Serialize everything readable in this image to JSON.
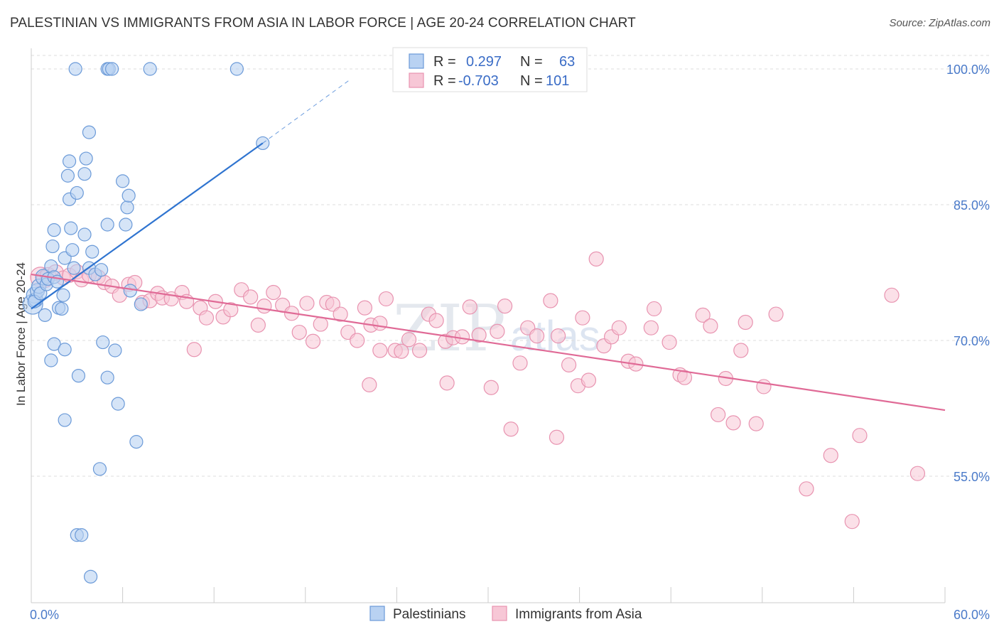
{
  "title": "PALESTINIAN VS IMMIGRANTS FROM ASIA IN LABOR FORCE | AGE 20-24 CORRELATION CHART",
  "source": "Source: ZipAtlas.com",
  "watermark": {
    "zip": "ZIP",
    "atlas": "atlas"
  },
  "colors": {
    "blue_fill": "#b9d2f2",
    "blue_stroke": "#6b9ad8",
    "blue_line": "#2f74d0",
    "pink_fill": "#f7c7d6",
    "pink_stroke": "#e893b0",
    "pink_line": "#e06a96",
    "tick_text": "#4a7ac9",
    "grid": "#dddddd"
  },
  "legend": {
    "rows": [
      {
        "r_label": "R =",
        "r_value": "0.297",
        "n_label": "N =",
        "n_value": "63"
      },
      {
        "r_label": "R =",
        "r_value": "-0.703",
        "n_label": "N =",
        "n_value": "101"
      }
    ]
  },
  "bottom_legend": [
    "Palestinians",
    "Immigrants from Asia"
  ],
  "chart_data": {
    "type": "scatter",
    "title": "PALESTINIAN VS IMMIGRANTS FROM ASIA IN LABOR FORCE | AGE 20-24 CORRELATION CHART",
    "xlabel": "",
    "ylabel": "In Labor Force | Age 20-24",
    "xlim": [
      0,
      60
    ],
    "ylim": [
      40.5,
      102.5
    ],
    "x_ticks_labeled": [
      "0.0%",
      "60.0%"
    ],
    "y_ticks": [
      {
        "value": 55,
        "label": "55.0%"
      },
      {
        "value": 70,
        "label": "70.0%"
      },
      {
        "value": 85,
        "label": "85.0%"
      },
      {
        "value": 100,
        "label": "100.0%"
      }
    ],
    "grid": "horizontal dashed",
    "legend_position": "top-center",
    "series": [
      {
        "name": "Palestinians",
        "R": 0.297,
        "N": 63,
        "trend": {
          "x1": 0,
          "y1": 73.5,
          "x2": 15.2,
          "y2": 91.8,
          "dash_to_x": 21.0,
          "dash_to_y": 98.9
        },
        "points": [
          [
            0.1,
            74.0,
            14
          ],
          [
            0.2,
            75.0,
            11
          ],
          [
            0.3,
            74.5,
            10
          ],
          [
            0.4,
            75.5,
            10
          ],
          [
            0.5,
            76.0,
            10
          ],
          [
            0.2,
            74.3,
            9
          ],
          [
            0.6,
            75.2,
            9
          ],
          [
            0.8,
            77.0,
            11
          ],
          [
            1.0,
            76.2,
            9
          ],
          [
            1.1,
            76.8,
            9
          ],
          [
            1.3,
            78.2,
            9
          ],
          [
            1.5,
            77.0,
            9
          ],
          [
            1.7,
            76.5,
            9
          ],
          [
            0.9,
            72.8,
            9
          ],
          [
            1.4,
            80.4,
            9
          ],
          [
            1.5,
            82.2,
            9
          ],
          [
            1.8,
            73.6,
            9
          ],
          [
            2.0,
            73.5,
            9
          ],
          [
            2.1,
            75.0,
            9
          ],
          [
            2.2,
            79.1,
            9
          ],
          [
            2.5,
            89.8,
            9
          ],
          [
            2.4,
            88.2,
            9
          ],
          [
            2.5,
            85.6,
            9
          ],
          [
            2.6,
            82.4,
            9
          ],
          [
            2.7,
            80.0,
            9
          ],
          [
            2.8,
            78.0,
            9
          ],
          [
            3.0,
            86.3,
            9
          ],
          [
            3.5,
            88.4,
            9
          ],
          [
            3.6,
            90.1,
            9
          ],
          [
            3.5,
            81.7,
            9
          ],
          [
            3.8,
            78.0,
            9
          ],
          [
            3.8,
            93.0,
            9
          ],
          [
            4.0,
            79.8,
            9
          ],
          [
            4.2,
            77.3,
            9
          ],
          [
            2.9,
            100.0,
            9
          ],
          [
            5.0,
            82.8,
            9
          ],
          [
            5.0,
            100.0,
            9
          ],
          [
            5.1,
            100.0,
            9
          ],
          [
            5.3,
            100.0,
            9
          ],
          [
            6.0,
            87.6,
            9
          ],
          [
            6.2,
            82.8,
            9
          ],
          [
            6.3,
            84.7,
            9
          ],
          [
            6.4,
            86.0,
            9
          ],
          [
            6.5,
            75.5,
            9
          ],
          [
            7.2,
            74.0,
            9
          ],
          [
            7.8,
            100.0,
            9
          ],
          [
            13.5,
            100.0,
            9
          ],
          [
            15.2,
            91.8,
            9
          ],
          [
            1.5,
            69.6,
            9
          ],
          [
            1.3,
            67.8,
            9
          ],
          [
            2.2,
            69.0,
            9
          ],
          [
            3.1,
            66.1,
            9
          ],
          [
            4.7,
            69.8,
            9
          ],
          [
            5.0,
            65.9,
            9
          ],
          [
            5.5,
            68.9,
            9
          ],
          [
            2.2,
            61.2,
            9
          ],
          [
            6.9,
            58.8,
            9
          ],
          [
            4.5,
            55.8,
            9
          ],
          [
            3.0,
            48.5,
            9
          ],
          [
            3.3,
            48.5,
            9
          ],
          [
            3.9,
            43.9,
            9
          ],
          [
            5.7,
            63.0,
            9
          ],
          [
            4.6,
            77.8,
            9
          ]
        ]
      },
      {
        "name": "Immigrants from Asia",
        "R": -0.703,
        "N": 101,
        "trend": {
          "x1": 0,
          "y1": 77.3,
          "x2": 60,
          "y2": 62.3
        },
        "points": [
          [
            0.6,
            77.0,
            14
          ],
          [
            0.9,
            76.8,
            12
          ],
          [
            1.1,
            77.2,
            11
          ],
          [
            1.6,
            77.5,
            11
          ],
          [
            2.1,
            76.9,
            10
          ],
          [
            2.5,
            77.2,
            10
          ],
          [
            3.0,
            77.6,
            10
          ],
          [
            3.3,
            76.7,
            10
          ],
          [
            3.8,
            77.2,
            10
          ],
          [
            4.4,
            77.0,
            10
          ],
          [
            4.8,
            76.4,
            10
          ],
          [
            5.3,
            76.0,
            10
          ],
          [
            5.8,
            75.0,
            10
          ],
          [
            6.4,
            76.2,
            10
          ],
          [
            6.8,
            76.4,
            10
          ],
          [
            7.3,
            74.2,
            10
          ],
          [
            7.8,
            74.4,
            10
          ],
          [
            8.3,
            75.2,
            10
          ],
          [
            8.6,
            74.7,
            10
          ],
          [
            9.2,
            74.6,
            10
          ],
          [
            9.9,
            75.3,
            10
          ],
          [
            10.2,
            74.3,
            10
          ],
          [
            11.1,
            73.6,
            10
          ],
          [
            11.5,
            72.5,
            10
          ],
          [
            12.1,
            74.3,
            10
          ],
          [
            12.6,
            72.6,
            10
          ],
          [
            13.1,
            73.4,
            10
          ],
          [
            13.8,
            75.6,
            10
          ],
          [
            14.4,
            74.8,
            10
          ],
          [
            14.9,
            71.7,
            10
          ],
          [
            15.3,
            73.8,
            10
          ],
          [
            15.9,
            75.3,
            10
          ],
          [
            16.5,
            73.9,
            10
          ],
          [
            17.1,
            73.0,
            10
          ],
          [
            17.6,
            70.9,
            10
          ],
          [
            18.1,
            74.1,
            10
          ],
          [
            18.5,
            69.9,
            10
          ],
          [
            19.0,
            71.8,
            10
          ],
          [
            19.4,
            74.2,
            10
          ],
          [
            19.8,
            74.0,
            10
          ],
          [
            20.3,
            72.9,
            10
          ],
          [
            20.8,
            70.9,
            10
          ],
          [
            21.4,
            70.0,
            10
          ],
          [
            21.9,
            73.6,
            10
          ],
          [
            22.3,
            71.7,
            10
          ],
          [
            22.9,
            71.9,
            10
          ],
          [
            23.3,
            74.6,
            10
          ],
          [
            23.9,
            68.9,
            10
          ],
          [
            24.3,
            68.8,
            10
          ],
          [
            24.8,
            70.1,
            10
          ],
          [
            25.5,
            68.9,
            10
          ],
          [
            26.1,
            72.9,
            10
          ],
          [
            26.6,
            72.2,
            10
          ],
          [
            27.2,
            69.9,
            10
          ],
          [
            27.7,
            70.3,
            10
          ],
          [
            28.3,
            70.4,
            10
          ],
          [
            28.8,
            73.7,
            10
          ],
          [
            29.4,
            70.6,
            10
          ],
          [
            30.6,
            71.0,
            10
          ],
          [
            31.1,
            73.8,
            10
          ],
          [
            32.1,
            67.5,
            10
          ],
          [
            32.6,
            71.4,
            10
          ],
          [
            33.2,
            70.5,
            10
          ],
          [
            34.1,
            74.4,
            10
          ],
          [
            34.6,
            70.5,
            10
          ],
          [
            35.3,
            67.3,
            10
          ],
          [
            36.2,
            72.5,
            10
          ],
          [
            37.6,
            69.4,
            10
          ],
          [
            38.1,
            70.4,
            10
          ],
          [
            38.6,
            71.4,
            10
          ],
          [
            39.2,
            67.7,
            10
          ],
          [
            39.7,
            67.4,
            10
          ],
          [
            40.7,
            71.4,
            10
          ],
          [
            40.9,
            73.5,
            10
          ],
          [
            41.9,
            69.8,
            10
          ],
          [
            42.6,
            66.2,
            10
          ],
          [
            42.9,
            65.9,
            10
          ],
          [
            44.1,
            72.8,
            10
          ],
          [
            44.6,
            71.6,
            10
          ],
          [
            45.1,
            61.8,
            10
          ],
          [
            45.6,
            65.8,
            10
          ],
          [
            46.1,
            60.9,
            10
          ],
          [
            46.6,
            68.9,
            10
          ],
          [
            46.9,
            72.0,
            10
          ],
          [
            47.6,
            60.8,
            10
          ],
          [
            48.1,
            64.9,
            10
          ],
          [
            48.9,
            72.9,
            10
          ],
          [
            22.2,
            65.1,
            10
          ],
          [
            30.2,
            64.8,
            10
          ],
          [
            31.5,
            60.2,
            10
          ],
          [
            34.5,
            59.3,
            10
          ],
          [
            35.9,
            65.0,
            10
          ],
          [
            36.6,
            65.6,
            10
          ],
          [
            37.1,
            79.0,
            10
          ],
          [
            22.9,
            68.9,
            10
          ],
          [
            27.3,
            65.3,
            10
          ],
          [
            10.7,
            69.0,
            10
          ],
          [
            56.5,
            75.0,
            10
          ],
          [
            52.5,
            57.3,
            10
          ],
          [
            53.9,
            50.0,
            10
          ],
          [
            54.4,
            59.5,
            10
          ],
          [
            58.2,
            55.3,
            10
          ],
          [
            50.9,
            53.6,
            10
          ]
        ]
      }
    ]
  }
}
